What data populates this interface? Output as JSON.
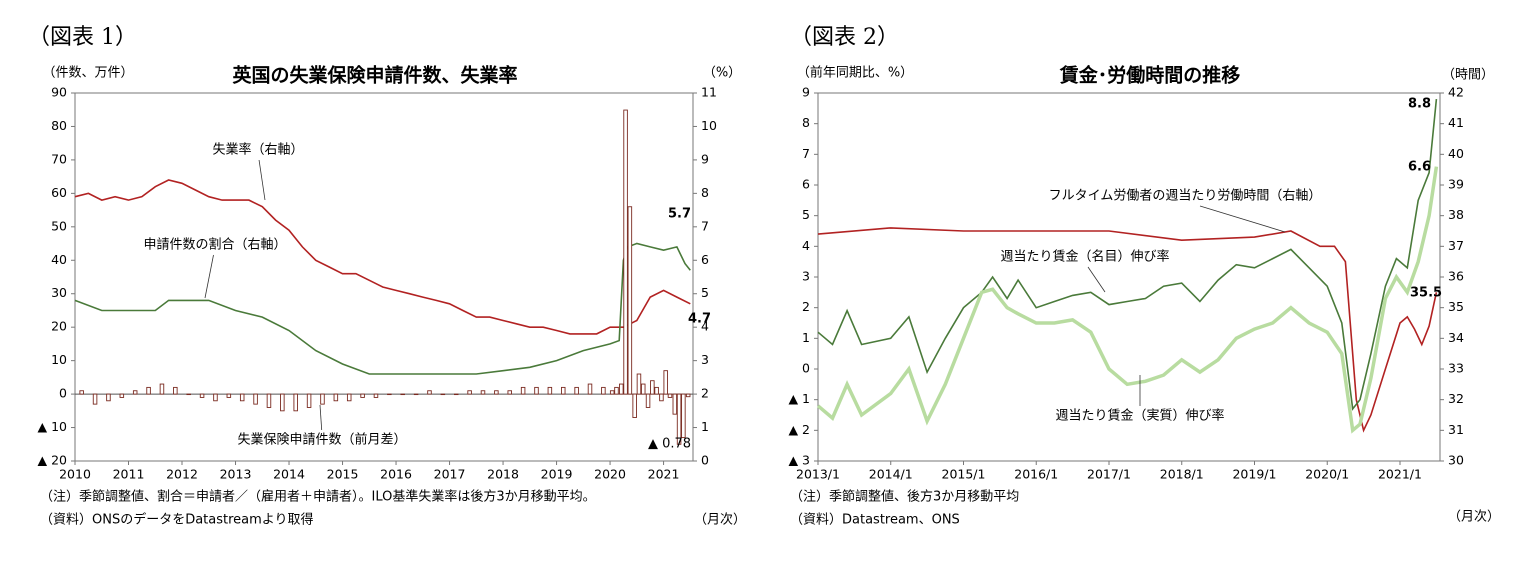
{
  "chart_data": [
    {
      "type": "bar-line",
      "figure_label": "（図表 1）",
      "title": "英国の失業保険申請件数、失業率",
      "ylabel": "（件数、万件）",
      "y2label": "（%）",
      "xlabel": "（月次）",
      "notes": [
        "（注）季節調整値、割合＝申請者／（雇用者＋申請者）。ILO基準失業率は後方3か月移動平均。",
        "（資料）ONSのデータをDatastreamより取得"
      ],
      "xlim": [
        2010,
        2021.55
      ],
      "xticks": [
        2010,
        2011,
        2012,
        2013,
        2014,
        2015,
        2016,
        2017,
        2018,
        2019,
        2020,
        2021
      ],
      "ylim": [
        -20,
        90
      ],
      "yticks": [
        {
          "value": -20,
          "label": "▲ 20"
        },
        {
          "value": -10,
          "label": "▲ 10"
        },
        0,
        10,
        20,
        30,
        40,
        50,
        60,
        70,
        80,
        90
      ],
      "y2lim": [
        0,
        11
      ],
      "y2ticks": [
        0,
        1,
        2,
        3,
        4,
        5,
        6,
        7,
        8,
        9,
        10,
        11
      ],
      "series": [
        {
          "name": "失業率（右軸）",
          "type": "line",
          "axis": "y2",
          "color": "#b22222",
          "x": [
            2010,
            2010.25,
            2010.5,
            2010.75,
            2011,
            2011.25,
            2011.5,
            2011.75,
            2012,
            2012.25,
            2012.5,
            2012.75,
            2013,
            2013.25,
            2013.5,
            2013.75,
            2014,
            2014.25,
            2014.5,
            2014.75,
            2015,
            2015.25,
            2015.5,
            2015.75,
            2016,
            2016.25,
            2016.5,
            2016.75,
            2017,
            2017.25,
            2017.5,
            2017.75,
            2018,
            2018.25,
            2018.5,
            2018.75,
            2019,
            2019.25,
            2019.5,
            2019.75,
            2020,
            2020.25,
            2020.5,
            2020.75,
            2021,
            2021.25,
            2021.5
          ],
          "values": [
            7.9,
            8.0,
            7.8,
            7.9,
            7.8,
            7.9,
            8.2,
            8.4,
            8.3,
            8.1,
            7.9,
            7.8,
            7.8,
            7.8,
            7.6,
            7.2,
            6.9,
            6.4,
            6.0,
            5.8,
            5.6,
            5.6,
            5.4,
            5.2,
            5.1,
            5.0,
            4.9,
            4.8,
            4.7,
            4.5,
            4.3,
            4.3,
            4.2,
            4.1,
            4.0,
            4.0,
            3.9,
            3.8,
            3.8,
            3.8,
            4.0,
            4.0,
            4.2,
            4.9,
            5.1,
            4.9,
            4.7
          ]
        },
        {
          "name": "申請件数の割合（右軸）",
          "type": "line",
          "axis": "y2",
          "color": "#4a7a3a",
          "x": [
            2010,
            2010.5,
            2011,
            2011.5,
            2011.75,
            2012.5,
            2013,
            2013.5,
            2014,
            2014.5,
            2015,
            2015.5,
            2016,
            2016.5,
            2017,
            2017.5,
            2018,
            2018.5,
            2019,
            2019.5,
            2020,
            2020.17,
            2020.25,
            2020.33,
            2020.5,
            2020.75,
            2021,
            2021.25,
            2021.4,
            2021.5
          ],
          "values": [
            4.8,
            4.5,
            4.5,
            4.5,
            4.8,
            4.8,
            4.5,
            4.3,
            3.9,
            3.3,
            2.9,
            2.6,
            2.6,
            2.6,
            2.6,
            2.6,
            2.7,
            2.8,
            3.0,
            3.3,
            3.5,
            3.6,
            6.0,
            6.4,
            6.5,
            6.4,
            6.3,
            6.4,
            5.9,
            5.7
          ]
        },
        {
          "name": "失業保険申請件数（前月差）",
          "type": "bar",
          "color": "#7a2a20",
          "x": [
            2010.125,
            2010.375,
            2010.625,
            2010.875,
            2011.125,
            2011.375,
            2011.625,
            2011.875,
            2012.125,
            2012.375,
            2012.625,
            2012.875,
            2013.125,
            2013.375,
            2013.625,
            2013.875,
            2014.125,
            2014.375,
            2014.625,
            2014.875,
            2015.125,
            2015.375,
            2015.625,
            2015.875,
            2016.125,
            2016.375,
            2016.625,
            2016.875,
            2017.125,
            2017.375,
            2017.625,
            2017.875,
            2018.125,
            2018.375,
            2018.625,
            2018.875,
            2019.125,
            2019.375,
            2019.625,
            2019.875,
            2020.04,
            2020.12,
            2020.21,
            2020.29,
            2020.37,
            2020.46,
            2020.54,
            2020.62,
            2020.71,
            2020.79,
            2020.87,
            2020.96,
            2021.04,
            2021.12,
            2021.21,
            2021.29,
            2021.37,
            2021.46
          ],
          "values": [
            1,
            -3,
            -2,
            -1,
            1,
            2,
            3,
            2,
            0,
            -1,
            -2,
            -1,
            -2,
            -3,
            -4,
            -5,
            -5,
            -4,
            -3,
            -2,
            -2,
            -1,
            -1,
            0,
            0,
            0,
            1,
            0,
            0,
            1,
            1,
            1,
            1,
            2,
            2,
            2,
            2,
            2,
            3,
            2,
            1,
            2,
            3,
            84.9,
            56,
            -7,
            6,
            3,
            -4,
            4,
            2,
            -2,
            7,
            -1,
            -6,
            -15,
            -13,
            -0.78
          ],
          "value_labels": [
            null,
            null,
            null,
            null,
            null,
            null,
            null,
            null,
            null,
            null,
            null,
            null,
            null,
            null,
            null,
            null,
            null,
            null,
            null,
            null,
            null,
            null,
            null,
            null,
            null,
            null,
            null,
            null,
            null,
            null,
            null,
            null,
            null,
            null,
            null,
            null,
            null,
            null,
            null,
            null,
            null,
            null,
            null,
            null,
            null,
            null,
            null,
            null,
            null,
            null,
            null,
            null,
            null,
            null,
            null,
            null,
            null,
            "▲ 0.78"
          ]
        }
      ]
    },
    {
      "type": "line",
      "figure_label": "（図表 2）",
      "title": "賃金･労働時間の推移",
      "ylabel": "（前年同期比、%）",
      "y2label": "（時間）",
      "xlabel": "（月次）",
      "notes": [
        "（注）季節調整値、後方3か月移動平均",
        "（資料）Datastream、ONS"
      ],
      "xlim": [
        2013,
        2021.55
      ],
      "xticks": [
        {
          "value": 2013,
          "label": "2013/1"
        },
        {
          "value": 2014,
          "label": "2014/1"
        },
        {
          "value": 2015,
          "label": "2015/1"
        },
        {
          "value": 2016,
          "label": "2016/1"
        },
        {
          "value": 2017,
          "label": "2017/1"
        },
        {
          "value": 2018,
          "label": "2018/1"
        },
        {
          "value": 2019,
          "label": "2019/1"
        },
        {
          "value": 2020,
          "label": "2020/1"
        },
        {
          "value": 2021,
          "label": "2021/1"
        }
      ],
      "ylim": [
        -3,
        9
      ],
      "yticks": [
        {
          "value": -3,
          "label": "▲ 3"
        },
        {
          "value": -2,
          "label": "▲ 2"
        },
        {
          "value": -1,
          "label": "▲ 1"
        },
        0,
        1,
        2,
        3,
        4,
        5,
        6,
        7,
        8,
        9
      ],
      "y2lim": [
        30,
        42
      ],
      "y2ticks": [
        30,
        31,
        32,
        33,
        34,
        35,
        36,
        37,
        38,
        39,
        40,
        41,
        42
      ],
      "series": [
        {
          "name": "フルタイム労働者の週当たり労働時間（右軸）",
          "type": "line",
          "axis": "y2",
          "color": "#b22222",
          "x": [
            2013,
            2014,
            2015,
            2016,
            2017,
            2018,
            2019,
            2019.5,
            2019.9,
            2020.1,
            2020.25,
            2020.4,
            2020.5,
            2020.6,
            2020.8,
            2021,
            2021.1,
            2021.2,
            2021.3,
            2021.4,
            2021.5
          ],
          "values": [
            37.4,
            37.6,
            37.5,
            37.5,
            37.5,
            37.2,
            37.3,
            37.5,
            37.0,
            37.0,
            36.5,
            32.0,
            31.0,
            31.5,
            33.0,
            34.5,
            34.7,
            34.3,
            33.8,
            34.4,
            35.5
          ]
        },
        {
          "name": "週当たり賃金（名目）伸び率",
          "type": "line",
          "color": "#4a7a3a",
          "x": [
            2013,
            2013.2,
            2013.4,
            2013.6,
            2014,
            2014.25,
            2014.5,
            2014.75,
            2015,
            2015.25,
            2015.4,
            2015.6,
            2015.75,
            2016,
            2016.25,
            2016.5,
            2016.75,
            2017,
            2017.25,
            2017.5,
            2017.75,
            2018,
            2018.25,
            2018.5,
            2018.75,
            2019,
            2019.25,
            2019.5,
            2019.75,
            2020,
            2020.2,
            2020.35,
            2020.45,
            2020.6,
            2020.8,
            2020.95,
            2021.1,
            2021.25,
            2021.4,
            2021.5
          ],
          "values": [
            1.2,
            0.8,
            1.9,
            0.8,
            1.0,
            1.7,
            -0.1,
            1.0,
            2.0,
            2.5,
            3.0,
            2.3,
            2.9,
            2.0,
            2.2,
            2.4,
            2.5,
            2.1,
            2.2,
            2.3,
            2.7,
            2.8,
            2.2,
            2.9,
            3.4,
            3.3,
            3.6,
            3.9,
            3.3,
            2.7,
            1.5,
            -1.3,
            -1.0,
            0.5,
            2.7,
            3.6,
            3.3,
            5.5,
            6.4,
            8.8
          ]
        },
        {
          "name": "週当たり賃金（実質）伸び率",
          "type": "line",
          "color": "#b8dca0",
          "x": [
            2013,
            2013.2,
            2013.4,
            2013.6,
            2014,
            2014.25,
            2014.5,
            2014.75,
            2015,
            2015.25,
            2015.4,
            2015.6,
            2015.75,
            2016,
            2016.25,
            2016.5,
            2016.75,
            2017,
            2017.25,
            2017.5,
            2017.75,
            2018,
            2018.25,
            2018.5,
            2018.75,
            2019,
            2019.25,
            2019.5,
            2019.75,
            2020,
            2020.2,
            2020.35,
            2020.45,
            2020.6,
            2020.8,
            2020.95,
            2021.1,
            2021.25,
            2021.4,
            2021.5
          ],
          "values": [
            -1.2,
            -1.6,
            -0.5,
            -1.5,
            -0.8,
            0.0,
            -1.7,
            -0.5,
            1.0,
            2.5,
            2.6,
            2.0,
            1.8,
            1.5,
            1.5,
            1.6,
            1.2,
            0.0,
            -0.5,
            -0.4,
            -0.2,
            0.3,
            -0.1,
            0.3,
            1.0,
            1.3,
            1.5,
            2.0,
            1.5,
            1.2,
            0.5,
            -2.0,
            -1.8,
            -0.3,
            2.3,
            3.0,
            2.5,
            3.5,
            5.0,
            6.6
          ]
        }
      ]
    }
  ]
}
